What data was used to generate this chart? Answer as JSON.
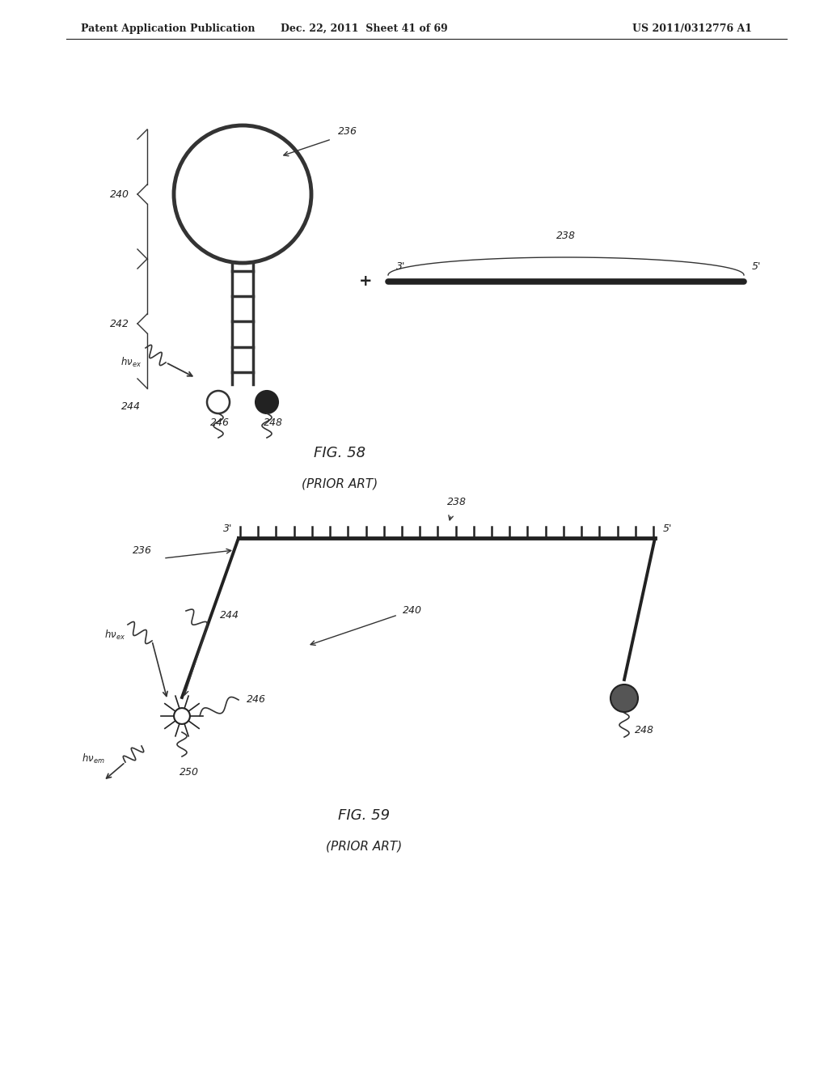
{
  "header_left": "Patent Application Publication",
  "header_mid": "Dec. 22, 2011  Sheet 41 of 69",
  "header_right": "US 2011/0312776 A1",
  "fig58_title": "FIG. 58",
  "fig58_subtitle": "(PRIOR ART)",
  "fig59_title": "FIG. 59",
  "fig59_subtitle": "(PRIOR ART)",
  "bg_color": "#ffffff",
  "line_color": "#333333",
  "dark_color": "#222222"
}
